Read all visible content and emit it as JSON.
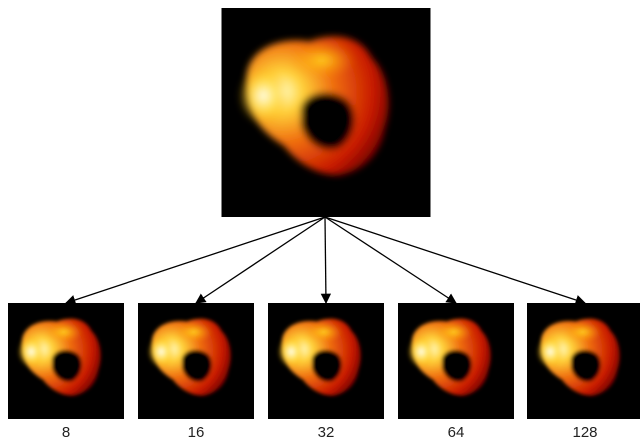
{
  "thumbnails": {
    "labels": [
      8,
      16,
      32,
      64,
      128
    ]
  }
}
